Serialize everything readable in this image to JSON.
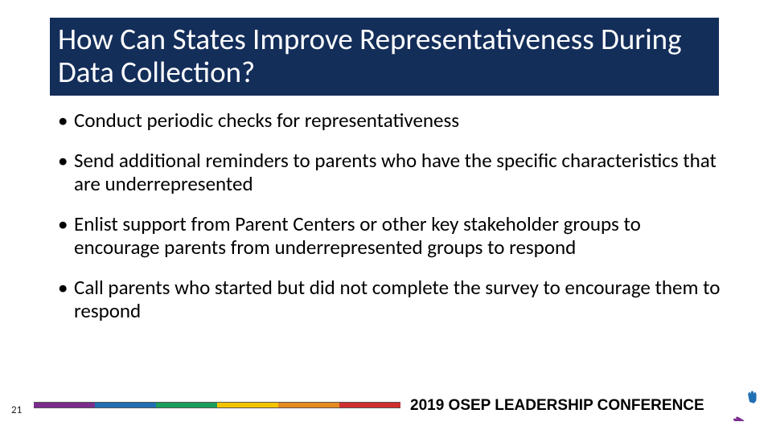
{
  "title": "How Can States Improve Representativeness During Data Collection?",
  "bullets": [
    "Conduct periodic checks for representativeness",
    "Send additional reminders to parents who have the specific characteristics that are underrepresented",
    "Enlist support from Parent Centers or other key stakeholder groups to encourage parents from underrepresented groups to respond",
    "Call parents who started but did not complete the survey to encourage them to respond"
  ],
  "page_number": "21",
  "footer_text": "2019 OSEP LEADERSHIP CONFERENCE",
  "colors": {
    "title_bg": "#142e5a",
    "title_text": "#ffffff",
    "body_text": "#000000",
    "background": "#ffffff"
  },
  "stripe_colors": [
    "#7b2d8e",
    "#1f6fb2",
    "#1a9e5c",
    "#f2c400",
    "#e58a1f",
    "#d12f2f"
  ],
  "logo_hands": [
    {
      "angle": 0,
      "color": "#1f6fb2"
    },
    {
      "angle": 60,
      "color": "#1a9e5c"
    },
    {
      "angle": 120,
      "color": "#f2c400"
    },
    {
      "angle": 180,
      "color": "#e58a1f"
    },
    {
      "angle": 240,
      "color": "#d12f2f"
    },
    {
      "angle": 300,
      "color": "#7b2d8e"
    }
  ],
  "typography": {
    "title_fontsize": 37,
    "body_fontsize": 25,
    "footer_fontsize": 19,
    "pagenum_fontsize": 13
  }
}
